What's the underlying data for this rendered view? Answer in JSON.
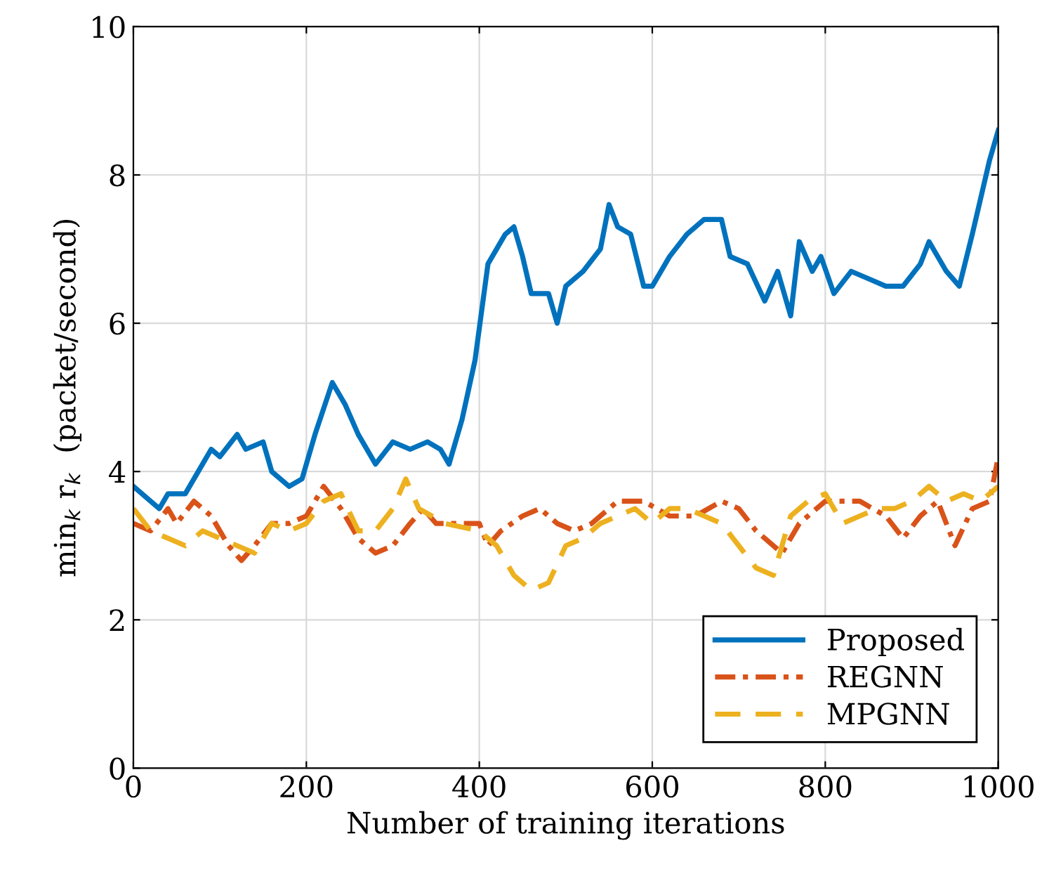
{
  "chart_data": {
    "type": "line",
    "xlabel": "Number of training iterations",
    "ylabel": "min$_{k}$ r$_{k}$  (packet/second)",
    "xlim": [
      0,
      1000
    ],
    "xticks": [
      0,
      200,
      400,
      600,
      800,
      1000
    ],
    "ylim": [
      0,
      10
    ],
    "yticks": [
      0,
      2,
      4,
      6,
      8,
      10
    ],
    "grid": true,
    "legend": "bottom right",
    "series": [
      {
        "name": "Proposed",
        "color": "#0072bd",
        "line_style": "solid",
        "x": [
          0,
          20,
          30,
          40,
          60,
          80,
          90,
          100,
          120,
          130,
          150,
          160,
          180,
          195,
          210,
          230,
          245,
          260,
          280,
          300,
          320,
          340,
          355,
          365,
          380,
          395,
          410,
          430,
          440,
          450,
          460,
          480,
          490,
          500,
          520,
          540,
          550,
          560,
          575,
          590,
          600,
          620,
          640,
          660,
          680,
          690,
          710,
          730,
          745,
          760,
          770,
          785,
          795,
          810,
          830,
          850,
          870,
          890,
          910,
          920,
          940,
          955,
          970,
          990,
          1000
        ],
        "values": [
          3.8,
          3.6,
          3.5,
          3.7,
          3.7,
          4.1,
          4.3,
          4.2,
          4.5,
          4.3,
          4.4,
          4.0,
          3.8,
          3.9,
          4.5,
          5.2,
          4.9,
          4.5,
          4.1,
          4.4,
          4.3,
          4.4,
          4.3,
          4.1,
          4.7,
          5.5,
          6.8,
          7.2,
          7.3,
          6.9,
          6.4,
          6.4,
          6.0,
          6.5,
          6.7,
          7.0,
          7.6,
          7.3,
          7.2,
          6.5,
          6.5,
          6.9,
          7.2,
          7.4,
          7.4,
          6.9,
          6.8,
          6.3,
          6.7,
          6.1,
          7.1,
          6.7,
          6.9,
          6.4,
          6.7,
          6.6,
          6.5,
          6.5,
          6.8,
          7.1,
          6.7,
          6.5,
          7.2,
          8.2,
          8.6
        ]
      },
      {
        "name": "REGNN",
        "color": "#d95319",
        "line_style": "dashdot",
        "x": [
          0,
          20,
          40,
          50,
          70,
          90,
          110,
          125,
          140,
          160,
          180,
          200,
          220,
          240,
          260,
          280,
          300,
          320,
          335,
          350,
          380,
          400,
          410,
          425,
          450,
          470,
          490,
          510,
          530,
          560,
          590,
          620,
          650,
          680,
          700,
          720,
          740,
          750,
          770,
          800,
          820,
          840,
          870,
          890,
          910,
          930,
          950,
          970,
          990,
          1000
        ],
        "values": [
          3.3,
          3.2,
          3.5,
          3.3,
          3.6,
          3.4,
          3.0,
          2.8,
          3.0,
          3.3,
          3.3,
          3.4,
          3.8,
          3.5,
          3.1,
          2.9,
          3.0,
          3.3,
          3.5,
          3.3,
          3.3,
          3.3,
          3.0,
          3.2,
          3.4,
          3.5,
          3.3,
          3.2,
          3.3,
          3.6,
          3.6,
          3.4,
          3.4,
          3.6,
          3.5,
          3.2,
          3.0,
          2.9,
          3.3,
          3.6,
          3.6,
          3.6,
          3.4,
          3.1,
          3.4,
          3.6,
          3.0,
          3.5,
          3.6,
          4.2
        ]
      },
      {
        "name": "MPGNN",
        "color": "#edb120",
        "line_style": "dashed",
        "x": [
          0,
          20,
          40,
          60,
          80,
          100,
          120,
          140,
          160,
          180,
          200,
          220,
          240,
          260,
          280,
          300,
          315,
          330,
          360,
          400,
          420,
          440,
          460,
          480,
          500,
          520,
          540,
          560,
          580,
          600,
          620,
          640,
          660,
          680,
          700,
          720,
          740,
          760,
          780,
          800,
          820,
          840,
          860,
          880,
          900,
          920,
          940,
          960,
          980,
          1000
        ],
        "values": [
          3.5,
          3.2,
          3.1,
          3.0,
          3.2,
          3.1,
          3.0,
          2.9,
          3.3,
          3.2,
          3.3,
          3.6,
          3.7,
          3.2,
          3.2,
          3.5,
          3.9,
          3.5,
          3.3,
          3.2,
          3.0,
          2.6,
          2.4,
          2.5,
          3.0,
          3.1,
          3.3,
          3.4,
          3.5,
          3.3,
          3.5,
          3.5,
          3.4,
          3.3,
          3.0,
          2.7,
          2.6,
          3.4,
          3.6,
          3.7,
          3.3,
          3.4,
          3.5,
          3.5,
          3.6,
          3.8,
          3.6,
          3.7,
          3.6,
          3.8
        ]
      }
    ]
  }
}
